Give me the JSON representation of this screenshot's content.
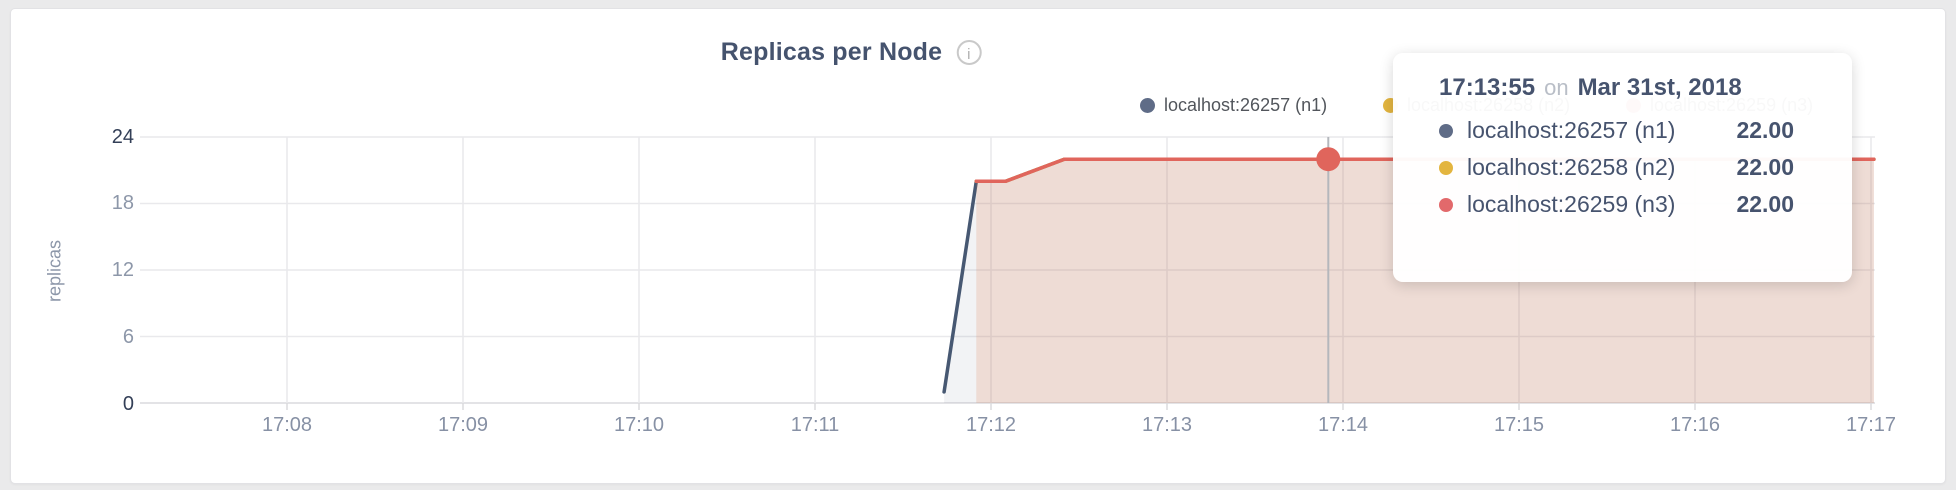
{
  "page": {
    "background": "#eaeaeb"
  },
  "card": {
    "background": "#ffffff",
    "border_color": "#e2e2e5"
  },
  "header": {
    "title": "Replicas per Node",
    "info_glyph": "i"
  },
  "legend": {
    "items": [
      {
        "label": "localhost:26257 (n1)",
        "color": "#5f6c87"
      },
      {
        "label": "localhost:26258 (n2)",
        "color": "#e3b53f"
      },
      {
        "label": "localhost:26259 (n3)",
        "color": "#e2696b"
      }
    ]
  },
  "tooltip": {
    "time": "17:13:55",
    "conjunction": "on",
    "date": "Mar 31st, 2018",
    "rows": [
      {
        "label": "localhost:26257 (n1)",
        "value": "22.00",
        "color": "#5f6c87"
      },
      {
        "label": "localhost:26258 (n2)",
        "value": "22.00",
        "color": "#e3b53f"
      },
      {
        "label": "localhost:26259 (n3)",
        "value": "22.00",
        "color": "#e2696b"
      }
    ]
  },
  "chart_data": {
    "type": "area",
    "title": "Replicas per Node",
    "xlabel": "",
    "ylabel": "replicas",
    "ylim": [
      0,
      24
    ],
    "y_ticks": [
      24,
      18,
      12,
      6,
      0
    ],
    "x_ticks": [
      "17:08",
      "17:09",
      "17:10",
      "17:11",
      "17:12",
      "17:13",
      "17:14",
      "17:15",
      "17:16",
      "17:17"
    ],
    "grid": true,
    "legend_position": "top-right",
    "series": [
      {
        "name": "localhost:26257 (n1)",
        "color": "#475872",
        "fill_opacity": 0.07,
        "points": [
          [
            "17:11:44",
            1
          ],
          [
            "17:11:55",
            20
          ],
          [
            "17:12:05",
            20
          ],
          [
            "17:12:25",
            22
          ],
          [
            "17:17:01",
            22
          ]
        ]
      },
      {
        "name": "localhost:26258 (n2)",
        "color": "#e3b53f",
        "fill_opacity": 0.07,
        "points": [
          [
            "17:11:55",
            20
          ],
          [
            "17:12:05",
            20
          ],
          [
            "17:12:25",
            22
          ],
          [
            "17:17:01",
            22
          ]
        ]
      },
      {
        "name": "localhost:26259 (n3)",
        "color": "#e0655c",
        "fill_opacity": 0.13,
        "points": [
          [
            "17:11:55",
            20
          ],
          [
            "17:12:05",
            20
          ],
          [
            "17:12:25",
            22
          ],
          [
            "17:17:01",
            22
          ]
        ]
      }
    ],
    "hover": {
      "time": "17:13:55",
      "value": 22,
      "highlight_series": "localhost:26259 (n3)"
    }
  }
}
